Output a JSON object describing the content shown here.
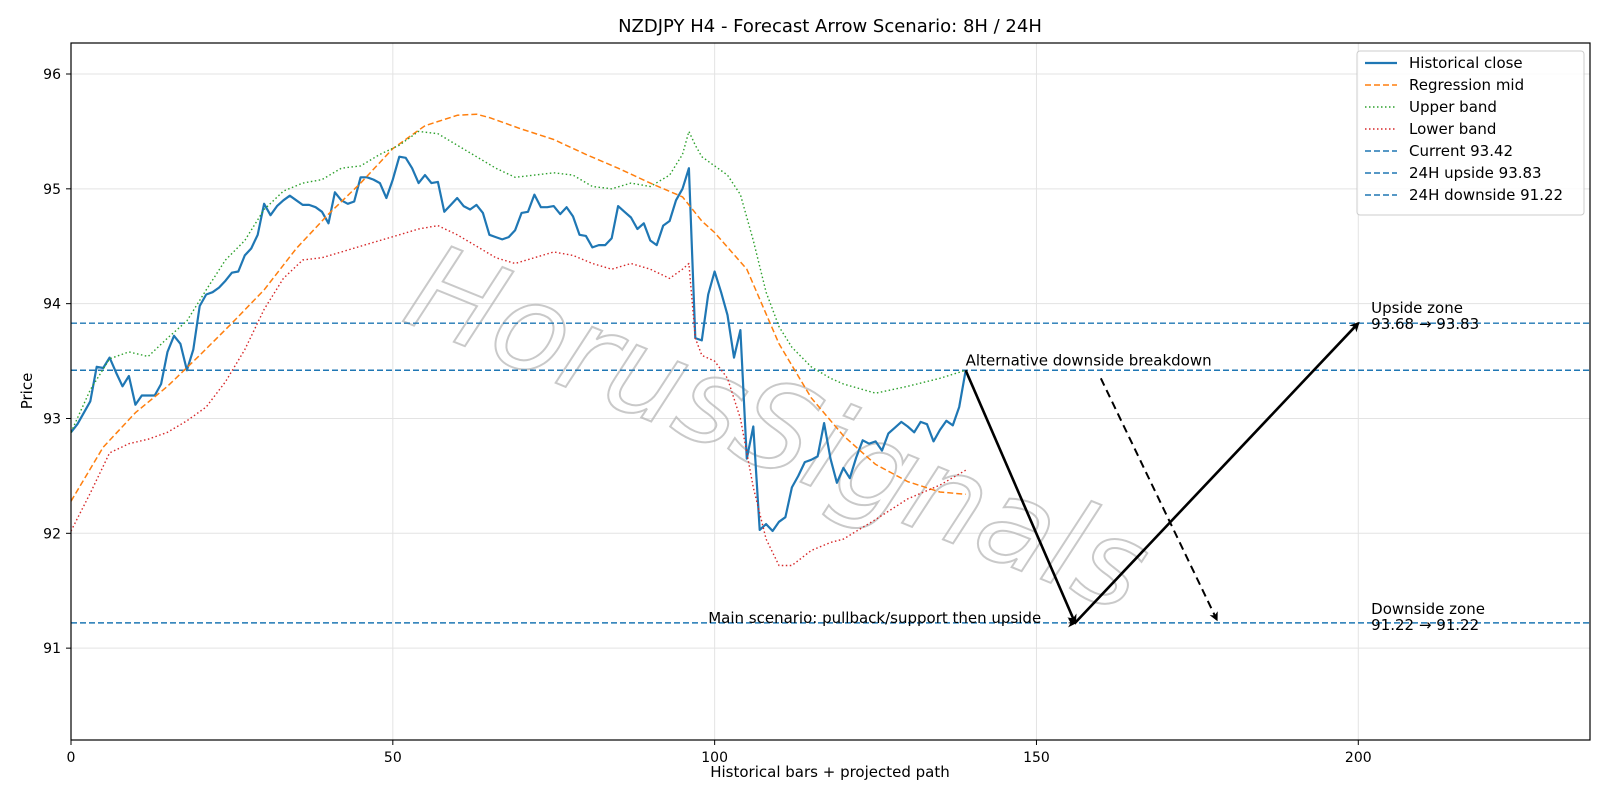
{
  "chart_data": {
    "type": "line",
    "title": "NZDJPY H4 - Forecast Arrow Scenario: 8H / 24H",
    "xlabel": "Historical bars + projected path",
    "ylabel": "Price",
    "xlim": [
      0,
      236
    ],
    "ylim": [
      90.2,
      96.27
    ],
    "x_ticks": [
      0,
      50,
      100,
      150,
      200
    ],
    "y_ticks": [
      91,
      92,
      93,
      94,
      95,
      96
    ],
    "grid": true,
    "legend_position": "top-right",
    "watermark": "HorusSignals",
    "colors": {
      "historical": "#1f77b4",
      "regression": "#ff7f0e",
      "upper": "#2ca02c",
      "lower": "#d62728",
      "hline": "#1f77b4",
      "arrow": "#000000"
    },
    "series": [
      {
        "name": "Historical close",
        "style": "solid",
        "color": "#1f77b4",
        "x": [
          0,
          1,
          2,
          3,
          4,
          5,
          6,
          7,
          8,
          9,
          10,
          11,
          12,
          13,
          14,
          15,
          16,
          17,
          18,
          19,
          20,
          21,
          22,
          23,
          24,
          25,
          26,
          27,
          28,
          29,
          30,
          31,
          32,
          33,
          34,
          35,
          36,
          37,
          38,
          39,
          40,
          41,
          42,
          43,
          44,
          45,
          46,
          47,
          48,
          49,
          50,
          51,
          52,
          53,
          54,
          55,
          56,
          57,
          58,
          59,
          60,
          61,
          62,
          63,
          64,
          65,
          66,
          67,
          68,
          69,
          70,
          71,
          72,
          73,
          74,
          75,
          76,
          77,
          78,
          79,
          80,
          81,
          82,
          83,
          84,
          85,
          86,
          87,
          88,
          89,
          90,
          91,
          92,
          93,
          94,
          95,
          96,
          97,
          98,
          99,
          100,
          101,
          102,
          103,
          104,
          105,
          106,
          107,
          108,
          109,
          110,
          111,
          112,
          113,
          114,
          115,
          116,
          117,
          118,
          119,
          120,
          121,
          122,
          123,
          124,
          125,
          126,
          127,
          128,
          129,
          130,
          131,
          132,
          133,
          134,
          135,
          136,
          137,
          138,
          139
        ],
        "y": [
          92.88,
          92.95,
          93.05,
          93.15,
          93.45,
          93.44,
          93.53,
          93.4,
          93.28,
          93.37,
          93.12,
          93.2,
          93.2,
          93.2,
          93.3,
          93.58,
          93.72,
          93.65,
          93.42,
          93.6,
          93.98,
          94.08,
          94.1,
          94.14,
          94.2,
          94.27,
          94.28,
          94.42,
          94.48,
          94.6,
          94.87,
          94.77,
          94.85,
          94.9,
          94.94,
          94.9,
          94.86,
          94.86,
          94.84,
          94.8,
          94.7,
          94.97,
          94.9,
          94.87,
          94.89,
          95.1,
          95.1,
          95.08,
          95.05,
          94.92,
          95.08,
          95.28,
          95.27,
          95.18,
          95.05,
          95.12,
          95.05,
          95.06,
          94.8,
          94.86,
          94.92,
          94.85,
          94.82,
          94.86,
          94.79,
          94.6,
          94.58,
          94.56,
          94.58,
          94.64,
          94.79,
          94.8,
          94.95,
          94.84,
          94.84,
          94.85,
          94.78,
          94.84,
          94.76,
          94.6,
          94.59,
          94.49,
          94.51,
          94.51,
          94.57,
          94.85,
          94.8,
          94.75,
          94.65,
          94.7,
          94.55,
          94.51,
          94.68,
          94.72,
          94.9,
          95.0,
          95.18,
          93.7,
          93.68,
          94.08,
          94.28,
          94.1,
          93.9,
          93.53,
          93.77,
          92.65,
          92.93,
          92.03,
          92.08,
          92.02,
          92.1,
          92.14,
          92.4,
          92.5,
          92.62,
          92.64,
          92.67,
          92.96,
          92.65,
          92.44,
          92.57,
          92.48,
          92.66,
          92.81,
          92.78,
          92.8,
          92.72,
          92.87,
          92.92,
          92.97,
          92.93,
          92.88,
          92.97,
          92.95,
          92.8,
          92.9,
          92.98,
          92.94,
          93.1,
          93.42
        ]
      },
      {
        "name": "Regression mid",
        "style": "dashed",
        "color": "#ff7f0e",
        "x": [
          0,
          5,
          10,
          15,
          20,
          25,
          30,
          35,
          40,
          45,
          50,
          55,
          60,
          63,
          65,
          70,
          75,
          80,
          85,
          90,
          95,
          98,
          100,
          105,
          110,
          115,
          120,
          125,
          130,
          135,
          139
        ],
        "y": [
          92.28,
          92.75,
          93.05,
          93.28,
          93.55,
          93.83,
          94.12,
          94.48,
          94.78,
          95.05,
          95.35,
          95.55,
          95.64,
          95.65,
          95.62,
          95.52,
          95.43,
          95.3,
          95.18,
          95.05,
          94.93,
          94.72,
          94.62,
          94.3,
          93.65,
          93.18,
          92.85,
          92.6,
          92.45,
          92.36,
          92.34
        ]
      },
      {
        "name": "Upper band",
        "style": "dotted",
        "color": "#2ca02c",
        "x": [
          0,
          3,
          6,
          9,
          12,
          15,
          18,
          21,
          24,
          27,
          30,
          33,
          36,
          39,
          42,
          45,
          48,
          51,
          54,
          57,
          60,
          63,
          66,
          69,
          72,
          75,
          78,
          81,
          84,
          87,
          90,
          93,
          95,
          96,
          97,
          98,
          100,
          102,
          104,
          106,
          108,
          110,
          112,
          115,
          118,
          120,
          125,
          130,
          135,
          139
        ],
        "y": [
          92.88,
          93.25,
          93.52,
          93.58,
          93.54,
          93.7,
          93.85,
          94.12,
          94.38,
          94.55,
          94.82,
          94.98,
          95.05,
          95.08,
          95.18,
          95.2,
          95.3,
          95.38,
          95.5,
          95.48,
          95.38,
          95.28,
          95.18,
          95.1,
          95.12,
          95.14,
          95.12,
          95.02,
          95.0,
          95.05,
          95.02,
          95.12,
          95.3,
          95.5,
          95.38,
          95.28,
          95.2,
          95.12,
          94.95,
          94.55,
          94.1,
          93.8,
          93.62,
          93.45,
          93.35,
          93.3,
          93.22,
          93.28,
          93.35,
          93.42
        ]
      },
      {
        "name": "Lower band",
        "style": "dotted",
        "color": "#d62728",
        "x": [
          0,
          3,
          6,
          9,
          12,
          15,
          18,
          21,
          24,
          27,
          30,
          33,
          36,
          39,
          42,
          45,
          48,
          51,
          54,
          57,
          60,
          63,
          66,
          69,
          72,
          75,
          78,
          81,
          84,
          87,
          90,
          93,
          95,
          96,
          97,
          98,
          100,
          102,
          104,
          106,
          108,
          110,
          112,
          115,
          118,
          120,
          125,
          130,
          135,
          139
        ],
        "y": [
          92.02,
          92.35,
          92.7,
          92.78,
          92.82,
          92.88,
          92.98,
          93.1,
          93.32,
          93.6,
          93.95,
          94.22,
          94.38,
          94.4,
          94.45,
          94.5,
          94.55,
          94.6,
          94.65,
          94.68,
          94.6,
          94.5,
          94.4,
          94.35,
          94.4,
          94.45,
          94.42,
          94.35,
          94.3,
          94.35,
          94.3,
          94.22,
          94.3,
          94.35,
          93.7,
          93.55,
          93.5,
          93.35,
          93.0,
          92.4,
          91.95,
          91.72,
          91.72,
          91.85,
          91.92,
          91.95,
          92.12,
          92.3,
          92.42,
          92.55
        ]
      }
    ],
    "hlines": [
      {
        "name": "Current 93.42",
        "y": 93.42,
        "color": "#1f77b4"
      },
      {
        "name": "24H upside 93.83",
        "y": 93.83,
        "color": "#1f77b4"
      },
      {
        "name": "24H downside 91.22",
        "y": 91.22,
        "color": "#1f77b4"
      }
    ],
    "arrows": [
      {
        "name": "main-leg-down",
        "from": [
          139,
          93.42
        ],
        "to": [
          156,
          91.22
        ],
        "style": "solid"
      },
      {
        "name": "main-leg-up",
        "from": [
          156,
          91.22
        ],
        "to": [
          200,
          93.83
        ],
        "style": "solid"
      },
      {
        "name": "alternative-down",
        "from": [
          160,
          93.35
        ],
        "to": [
          178,
          91.25
        ],
        "style": "dashed"
      },
      {
        "name": "main-scenario-pointer",
        "from": [
          155,
          91.22
        ],
        "to": [
          156,
          91.22
        ],
        "style": "thin"
      }
    ],
    "annotations": [
      {
        "name": "alternative-label",
        "text": "Alternative downside breakdown",
        "x": 139,
        "y": 93.42
      },
      {
        "name": "main-scenario-label",
        "text": "Main scenario: pullback/support then upside",
        "x": 99,
        "y": 91.22
      },
      {
        "name": "upside-zone-title",
        "text": "Upside zone",
        "x": 202,
        "y": 93.83
      },
      {
        "name": "upside-zone-range",
        "text": "93.68 → 93.83",
        "x": 202,
        "y": 93.83
      },
      {
        "name": "downside-zone-title",
        "text": "Downside zone",
        "x": 202,
        "y": 91.22
      },
      {
        "name": "downside-zone-range",
        "text": "91.22 → 91.22",
        "x": 202,
        "y": 91.22
      }
    ]
  }
}
